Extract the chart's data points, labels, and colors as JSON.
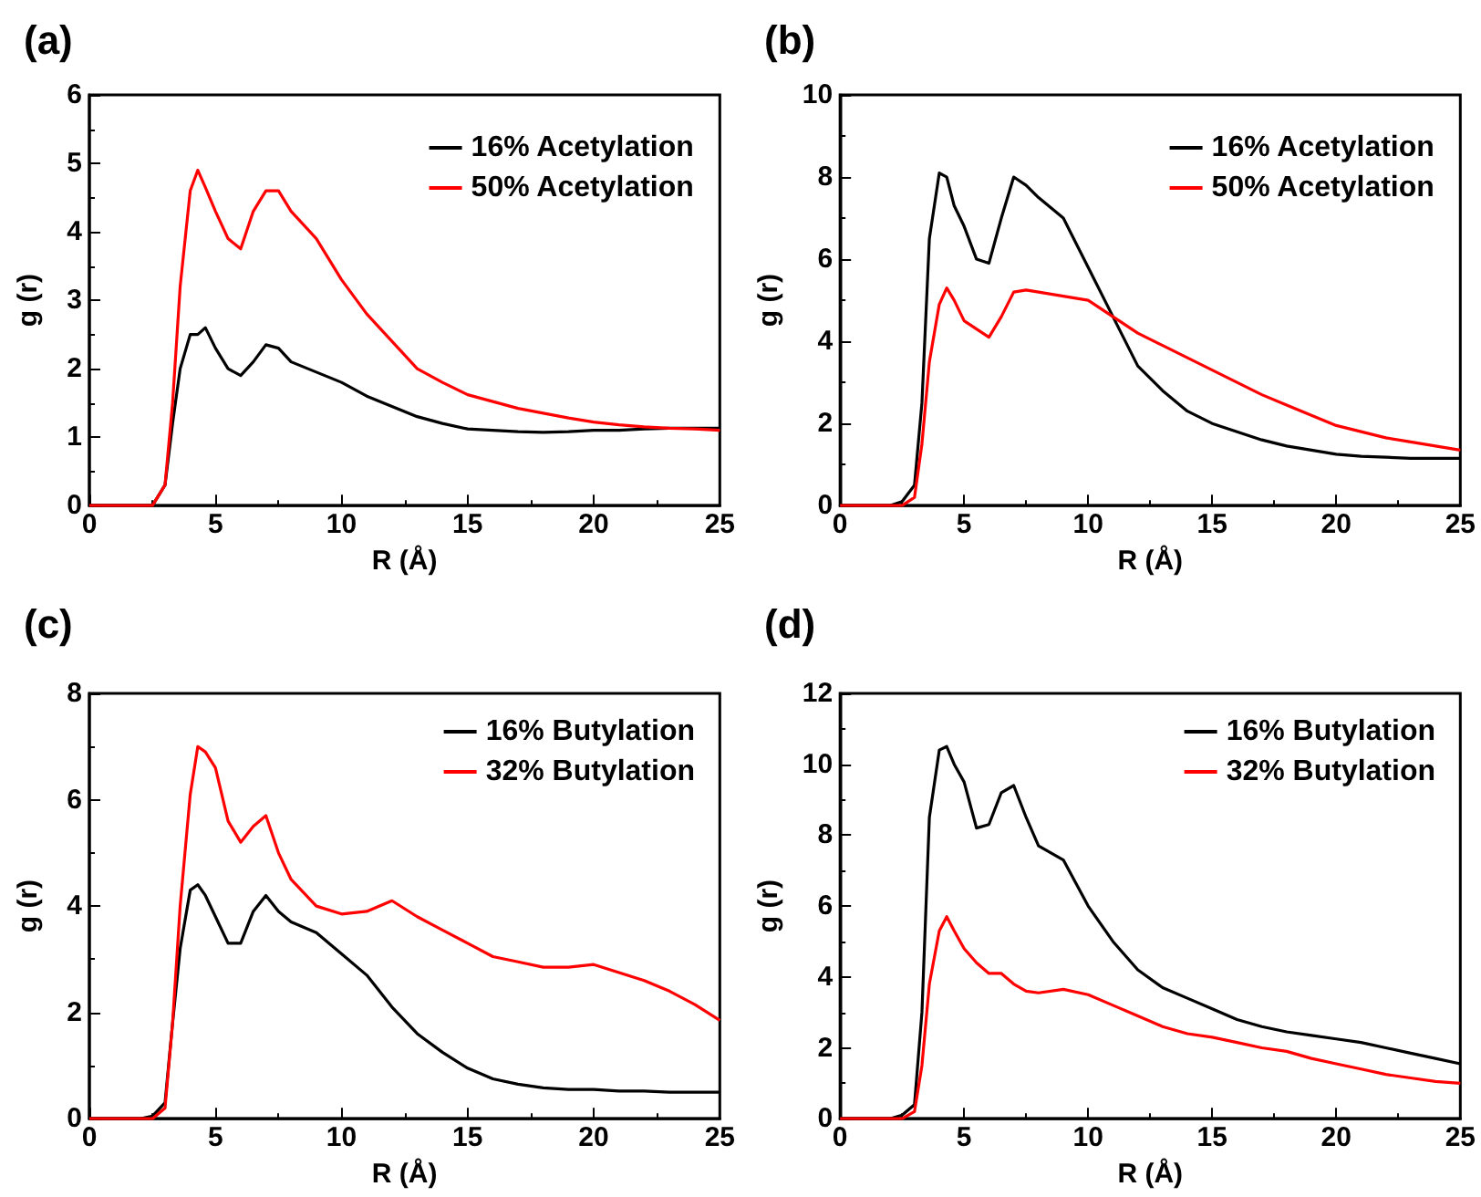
{
  "chart_data": [
    {
      "type": "line",
      "title": "(a)",
      "xlabel": "R (Å)",
      "ylabel": "g (r)",
      "x": [
        0,
        2,
        2.5,
        3,
        3.3,
        3.6,
        4,
        4.3,
        4.6,
        5,
        5.5,
        6,
        6.5,
        7,
        7.5,
        8,
        9,
        10,
        11,
        12,
        13,
        14,
        15,
        16,
        17,
        18,
        19,
        20,
        21,
        22,
        23,
        24,
        25
      ],
      "xlim": [
        0,
        25
      ],
      "xticks": [
        0,
        5,
        10,
        15,
        20,
        25
      ],
      "ylim": [
        0,
        6
      ],
      "yticks": [
        0,
        1,
        2,
        3,
        4,
        5,
        6
      ],
      "legend": "top right",
      "marker": "none",
      "line_style": "solid",
      "grid": false,
      "series": [
        {
          "name": "16% Acetylation",
          "color": "#000000",
          "values": [
            0,
            0,
            0,
            0.3,
            1.2,
            2.0,
            2.5,
            2.5,
            2.6,
            2.3,
            2.0,
            1.9,
            2.1,
            2.35,
            2.3,
            2.1,
            1.95,
            1.8,
            1.6,
            1.45,
            1.3,
            1.2,
            1.12,
            1.1,
            1.08,
            1.07,
            1.08,
            1.1,
            1.1,
            1.12,
            1.13,
            1.13,
            1.13
          ]
        },
        {
          "name": "50% Acetylation",
          "color": "#ff0000",
          "values": [
            0,
            0,
            0,
            0.3,
            1.5,
            3.2,
            4.6,
            4.9,
            4.65,
            4.3,
            3.9,
            3.75,
            4.3,
            4.6,
            4.6,
            4.3,
            3.9,
            3.3,
            2.8,
            2.4,
            2.0,
            1.8,
            1.62,
            1.52,
            1.42,
            1.35,
            1.28,
            1.22,
            1.18,
            1.15,
            1.13,
            1.12,
            1.1
          ]
        }
      ]
    },
    {
      "type": "line",
      "title": "(b)",
      "xlabel": "R (Å)",
      "ylabel": "g (r)",
      "x": [
        0,
        2,
        2.5,
        3,
        3.3,
        3.6,
        4,
        4.3,
        4.6,
        5,
        5.5,
        6,
        6.5,
        7,
        7.5,
        8,
        9,
        10,
        11,
        12,
        13,
        14,
        15,
        16,
        17,
        18,
        19,
        20,
        21,
        22,
        23,
        24,
        25
      ],
      "xlim": [
        0,
        25
      ],
      "xticks": [
        0,
        5,
        10,
        15,
        20,
        25
      ],
      "ylim": [
        0,
        10
      ],
      "yticks": [
        0,
        2,
        4,
        6,
        8,
        10
      ],
      "legend": "top right",
      "marker": "none",
      "line_style": "solid",
      "grid": false,
      "series": [
        {
          "name": "16% Acetylation",
          "color": "#000000",
          "values": [
            0,
            0,
            0.1,
            0.5,
            2.5,
            6.5,
            8.1,
            8.0,
            7.3,
            6.8,
            6.0,
            5.9,
            7.0,
            8.0,
            7.8,
            7.5,
            7.0,
            5.8,
            4.6,
            3.4,
            2.8,
            2.3,
            2.0,
            1.8,
            1.6,
            1.45,
            1.35,
            1.25,
            1.2,
            1.18,
            1.15,
            1.15,
            1.15
          ]
        },
        {
          "name": "50% Acetylation",
          "color": "#ff0000",
          "values": [
            0,
            0,
            0,
            0.2,
            1.5,
            3.5,
            4.9,
            5.3,
            5.0,
            4.5,
            4.3,
            4.1,
            4.6,
            5.2,
            5.25,
            5.2,
            5.1,
            5.0,
            4.6,
            4.2,
            3.9,
            3.6,
            3.3,
            3.0,
            2.7,
            2.45,
            2.2,
            1.95,
            1.8,
            1.65,
            1.55,
            1.45,
            1.35
          ]
        }
      ]
    },
    {
      "type": "line",
      "title": "(c)",
      "xlabel": "R (Å)",
      "ylabel": "g (r)",
      "x": [
        0,
        2,
        2.5,
        3,
        3.3,
        3.6,
        4,
        4.3,
        4.6,
        5,
        5.5,
        6,
        6.5,
        7,
        7.5,
        8,
        9,
        10,
        11,
        12,
        13,
        14,
        15,
        16,
        17,
        18,
        19,
        20,
        21,
        22,
        23,
        24,
        25
      ],
      "xlim": [
        0,
        25
      ],
      "xticks": [
        0,
        5,
        10,
        15,
        20,
        25
      ],
      "ylim": [
        0,
        8
      ],
      "yticks": [
        0,
        2,
        4,
        6,
        8
      ],
      "legend": "top right",
      "marker": "none",
      "line_style": "solid",
      "grid": false,
      "series": [
        {
          "name": "16% Butylation",
          "color": "#000000",
          "values": [
            0,
            0,
            0.05,
            0.3,
            1.8,
            3.2,
            4.3,
            4.4,
            4.2,
            3.8,
            3.3,
            3.3,
            3.9,
            4.2,
            3.9,
            3.7,
            3.5,
            3.1,
            2.7,
            2.1,
            1.6,
            1.25,
            0.95,
            0.75,
            0.65,
            0.58,
            0.55,
            0.55,
            0.52,
            0.52,
            0.5,
            0.5,
            0.5
          ]
        },
        {
          "name": "32% Butylation",
          "color": "#ff0000",
          "values": [
            0,
            0,
            0,
            0.2,
            1.8,
            4.0,
            6.1,
            7.0,
            6.9,
            6.6,
            5.6,
            5.2,
            5.5,
            5.7,
            5.0,
            4.5,
            4.0,
            3.85,
            3.9,
            4.1,
            3.8,
            3.55,
            3.3,
            3.05,
            2.95,
            2.85,
            2.85,
            2.9,
            2.75,
            2.6,
            2.4,
            2.15,
            1.85
          ]
        }
      ]
    },
    {
      "type": "line",
      "title": "(d)",
      "xlabel": "R (Å)",
      "ylabel": "g (r)",
      "x": [
        0,
        2,
        2.5,
        3,
        3.3,
        3.6,
        4,
        4.3,
        4.6,
        5,
        5.5,
        6,
        6.5,
        7,
        7.5,
        8,
        9,
        10,
        11,
        12,
        13,
        14,
        15,
        16,
        17,
        18,
        19,
        20,
        21,
        22,
        23,
        24,
        25
      ],
      "xlim": [
        0,
        25
      ],
      "xticks": [
        0,
        5,
        10,
        15,
        20,
        25
      ],
      "ylim": [
        0,
        12
      ],
      "yticks": [
        0,
        2,
        4,
        6,
        8,
        10,
        12
      ],
      "legend": "top right",
      "marker": "none",
      "line_style": "solid",
      "grid": false,
      "series": [
        {
          "name": "16% Butylation",
          "color": "#000000",
          "values": [
            0,
            0,
            0.1,
            0.4,
            3.0,
            8.5,
            10.4,
            10.5,
            10.0,
            9.5,
            8.2,
            8.3,
            9.2,
            9.4,
            8.5,
            7.7,
            7.3,
            6.0,
            5.0,
            4.2,
            3.7,
            3.4,
            3.1,
            2.8,
            2.6,
            2.45,
            2.35,
            2.25,
            2.15,
            2.0,
            1.85,
            1.7,
            1.55
          ]
        },
        {
          "name": "32% Butylation",
          "color": "#ff0000",
          "values": [
            0,
            0,
            0,
            0.2,
            1.5,
            3.8,
            5.3,
            5.7,
            5.3,
            4.8,
            4.4,
            4.1,
            4.1,
            3.8,
            3.6,
            3.55,
            3.65,
            3.5,
            3.2,
            2.9,
            2.6,
            2.4,
            2.3,
            2.15,
            2.0,
            1.9,
            1.7,
            1.55,
            1.4,
            1.25,
            1.15,
            1.05,
            1.0
          ]
        }
      ]
    }
  ]
}
